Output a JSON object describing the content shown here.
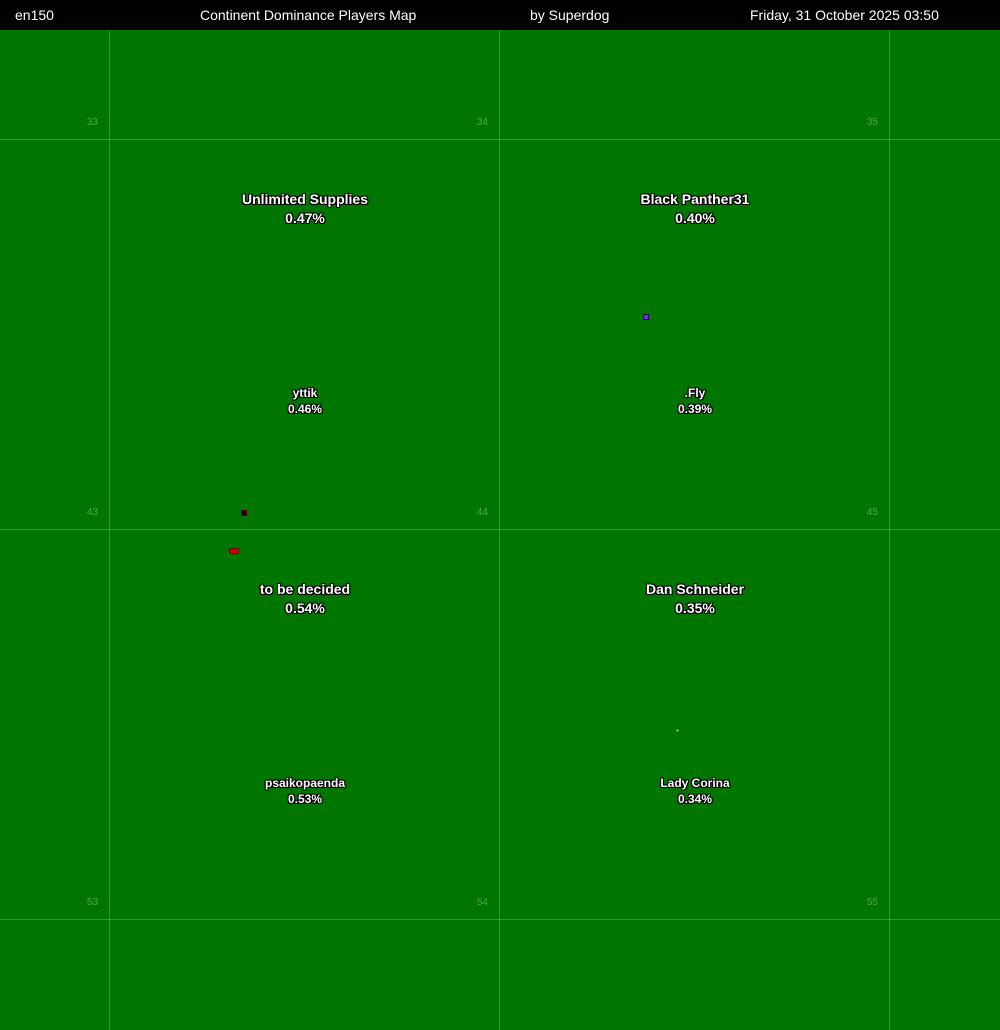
{
  "header": {
    "world": "en150",
    "title": "Continent Dominance Players Map",
    "author": "by Superdog",
    "datetime": "Friday, 31 October 2025 03:50"
  },
  "continents": {
    "k33": "33",
    "k34": "34",
    "k35": "35",
    "k43": "43",
    "k44": "44",
    "k45": "45",
    "k53": "53",
    "k54": "54",
    "k55": "55"
  },
  "leaders": {
    "k44": {
      "first": {
        "name": "Unlimited Supplies",
        "pct": "0.47%"
      },
      "second": {
        "name": "yttik",
        "pct": "0.46%"
      }
    },
    "k45": {
      "first": {
        "name": "Black Panther31",
        "pct": "0.40%"
      },
      "second": {
        "name": ".Fly",
        "pct": "0.39%"
      }
    },
    "k54": {
      "first": {
        "name": "to be decided",
        "pct": "0.54%"
      },
      "second": {
        "name": "psaikopaenda",
        "pct": "0.53%"
      }
    },
    "k55": {
      "first": {
        "name": "Dan Schneider",
        "pct": "0.35%"
      },
      "second": {
        "name": "Lady Corina",
        "pct": "0.34%"
      }
    }
  },
  "colors": {
    "background": "#007500",
    "header": "#000000",
    "village_red": "#cc0000",
    "village_purple": "#7a2bd6",
    "village_black": "#000000",
    "village_green": "#33bb33"
  }
}
